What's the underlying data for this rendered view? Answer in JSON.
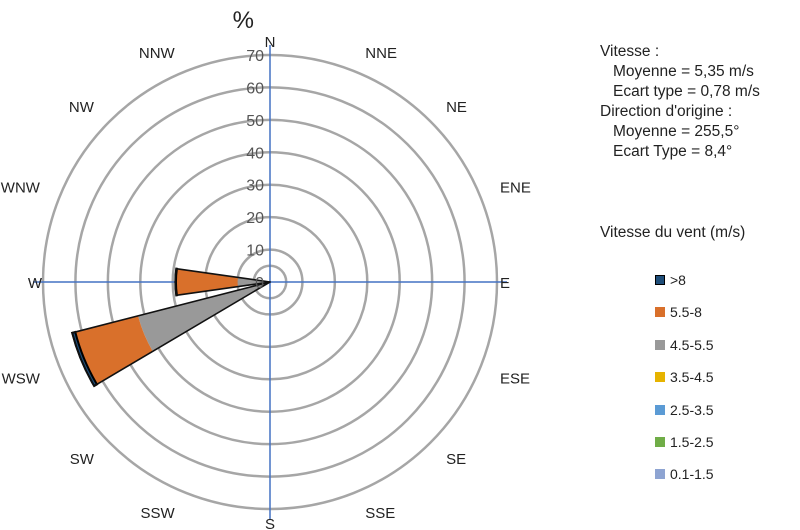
{
  "chart_data": {
    "type": "polar-bar",
    "radial_unit": "%",
    "rlim": [
      0,
      70
    ],
    "radial_ticks": [
      0,
      10,
      20,
      30,
      40,
      50,
      60,
      70
    ],
    "directions": [
      "N",
      "NNE",
      "NE",
      "ENE",
      "E",
      "ESE",
      "SE",
      "SSE",
      "S",
      "SSW",
      "SW",
      "WSW",
      "W",
      "WNW",
      "NW",
      "NNW"
    ],
    "series": [
      {
        "name": "0.1-1.5",
        "color": "#8EA4D2",
        "values": [
          0,
          0,
          0,
          0,
          0,
          0,
          0,
          0,
          0,
          0,
          0,
          0,
          0,
          0,
          0,
          0
        ]
      },
      {
        "name": "1.5-2.5",
        "color": "#70AD47",
        "values": [
          0,
          0,
          0,
          0,
          0,
          0,
          0,
          0,
          0,
          0,
          0,
          0,
          0,
          0,
          0,
          0
        ]
      },
      {
        "name": "2.5-3.5",
        "color": "#5B9BD5",
        "values": [
          0,
          0,
          0,
          0,
          0,
          0,
          0,
          0,
          0,
          0,
          0,
          0,
          0,
          0,
          0,
          0
        ]
      },
      {
        "name": "3.5-4.5",
        "color": "#E6B300",
        "values": [
          0,
          0,
          0,
          0,
          0,
          0,
          0,
          0,
          0,
          0,
          0,
          1.5,
          0,
          0,
          0,
          0
        ]
      },
      {
        "name": "4.5-5.5",
        "color": "#999999",
        "values": [
          0,
          0,
          0,
          0,
          0,
          0,
          0,
          0,
          0,
          0,
          0,
          40.5,
          10,
          0,
          0,
          0
        ]
      },
      {
        "name": "5.5-8",
        "color": "#D9702B",
        "values": [
          0,
          0,
          0,
          0,
          0,
          0,
          0,
          0,
          0,
          0,
          0,
          20,
          19,
          0,
          0,
          0
        ]
      },
      {
        "name": ">8",
        "color": "#1F4E79",
        "values": [
          0,
          0,
          0,
          0,
          0,
          0,
          0,
          0,
          0,
          0,
          0,
          1,
          0.2,
          0,
          0,
          0
        ]
      }
    ]
  },
  "stats": {
    "speed_header": "Vitesse :",
    "speed_mean": "Moyenne = 5,35 m/s",
    "speed_std": "Ecart type = 0,78 m/s",
    "dir_header": "Direction d'origine :",
    "dir_mean": "Moyenne = 255,5°",
    "dir_std": "Ecart Type = 8,4°"
  },
  "legend_title": "Vitesse du vent (m/s)",
  "legend_items": [
    ">8",
    "5.5-8",
    "4.5-5.5",
    "3.5-4.5",
    "2.5-3.5",
    "1.5-2.5",
    "0.1-1.5"
  ],
  "colors": {
    "ring": "#A6A6A6",
    "axis": "#4472C4",
    "bar_outline": "#111111"
  }
}
